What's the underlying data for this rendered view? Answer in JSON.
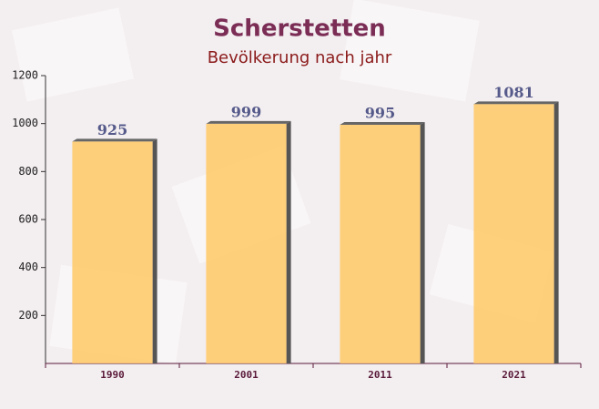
{
  "chart_data": {
    "type": "bar",
    "title": "Scherstetten",
    "subtitle": "Bevölkerung nach jahr",
    "categories": [
      "1990",
      "2001",
      "2011",
      "2021"
    ],
    "values": [
      925,
      999,
      995,
      1081
    ],
    "color": "#ffc966",
    "ylim": [
      0,
      1200
    ],
    "yticks": [
      200,
      400,
      600,
      800,
      1000,
      1200
    ]
  }
}
